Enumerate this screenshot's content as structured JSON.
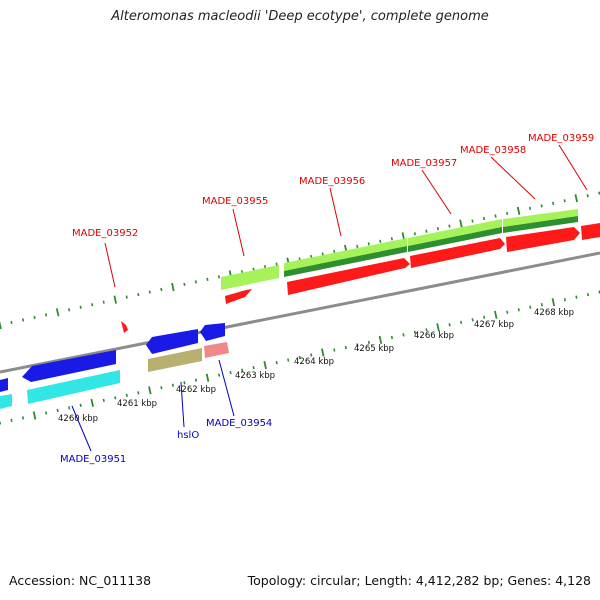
{
  "title": "Alteromonas macleodii 'Deep ecotype', complete genome",
  "footer": {
    "accession": "Accession: NC_011138",
    "summary": "Topology: circular; Length: 4,412,282 bp; Genes: 4,128"
  },
  "colors": {
    "backbone": "#909090",
    "tick_green": "#2e8b2e",
    "red_gene": "#ff1a1a",
    "blue_gene": "#1a1ae6",
    "cyan_gene": "#33e6e6",
    "lime_gene": "#a6f25a",
    "darkgreen_gene": "#2d8f2d",
    "olive_gene": "#b8b070",
    "pink_gene": "#f08888",
    "label_red": "#e00000",
    "label_blue": "#0000c8"
  },
  "scale_labels": [
    "4260 kbp",
    "4261 kbp",
    "4262 kbp",
    "4263 kbp",
    "4264 kbp",
    "4265 kbp",
    "4266 kbp",
    "4267 kbp",
    "4268 kbp"
  ],
  "gene_labels": {
    "made_03952": "MADE_03952",
    "made_03955": "MADE_03955",
    "made_03956": "MADE_03956",
    "made_03957": "MADE_03957",
    "made_03958": "MADE_03958",
    "made_03959": "MADE_03959",
    "made_03951": "MADE_03951",
    "hslo": "hslO",
    "made_03954": "MADE_03954"
  }
}
